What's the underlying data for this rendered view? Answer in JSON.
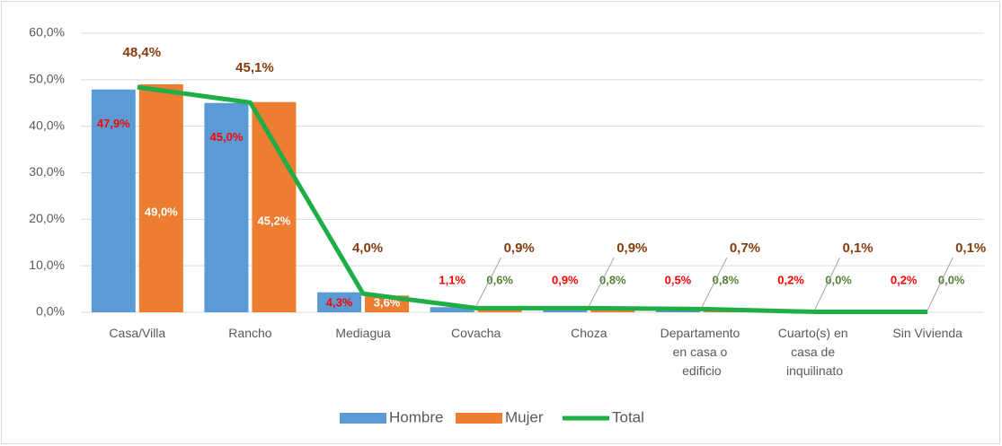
{
  "chart_data": {
    "type": "bar-line",
    "categories": [
      "Casa/Villa",
      "Rancho",
      "Mediagua",
      "Covacha",
      "Choza",
      "Departamento en casa o edificio",
      "Cuarto(s) en casa de inquilinato",
      "Sin Vivienda"
    ],
    "series": [
      {
        "name": "Hombre",
        "type": "bar",
        "color": "#5b9bd5",
        "label_color": "#ff0000",
        "values": [
          47.9,
          45.0,
          4.3,
          1.1,
          0.9,
          0.5,
          0.2,
          0.2
        ],
        "value_labels": [
          "47,9%",
          "45,0%",
          "4,3%",
          "1,1%",
          "0,9%",
          "0,5%",
          "0,2%",
          "0,2%"
        ]
      },
      {
        "name": "Mujer",
        "type": "bar",
        "color": "#ed7d31",
        "label_color": "#548235",
        "values": [
          49.0,
          45.2,
          3.6,
          0.6,
          0.8,
          0.8,
          0.0,
          0.0
        ],
        "value_labels": [
          "49,0%",
          "45,2%",
          "3,6%",
          "0,6%",
          "0,8%",
          "0,8%",
          "0,0%",
          "0,0%"
        ]
      },
      {
        "name": "Total",
        "type": "line",
        "color": "#1fad45",
        "label_color": "#843c0c",
        "values": [
          48.4,
          45.1,
          4.0,
          0.9,
          0.9,
          0.7,
          0.1,
          0.1
        ],
        "value_labels": [
          "48,4%",
          "45,1%",
          "4,0%",
          "0,9%",
          "0,9%",
          "0,7%",
          "0,1%",
          "0,1%"
        ]
      }
    ],
    "ylim": [
      0,
      60
    ],
    "yticks": [
      {
        "value": 0,
        "label": "0,0%"
      },
      {
        "value": 10,
        "label": "10,0%"
      },
      {
        "value": 20,
        "label": "20,0%"
      },
      {
        "value": 30,
        "label": "30,0%"
      },
      {
        "value": 40,
        "label": "40,0%"
      },
      {
        "value": 50,
        "label": "50,0%"
      },
      {
        "value": 60,
        "label": "60,0%"
      }
    ],
    "grid": true,
    "legend": "bottom"
  }
}
